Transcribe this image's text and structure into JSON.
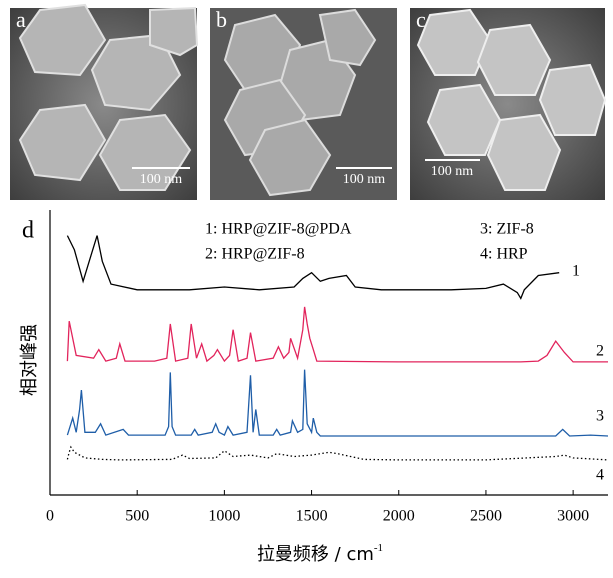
{
  "panels": [
    {
      "label": "a",
      "scale_bar": "100 nm"
    },
    {
      "label": "b",
      "scale_bar": "100 nm"
    },
    {
      "label": "c",
      "scale_bar": "100 nm"
    }
  ],
  "chart_data": {
    "type": "line",
    "panel_label": "d",
    "x_label": "拉曼频移 / cm",
    "x_label_sup": "-1",
    "y_label": "相对峰强",
    "xlim": [
      0,
      3200
    ],
    "xticks": [
      0,
      500,
      1000,
      1500,
      2000,
      2500,
      3000
    ],
    "ylim": [
      0,
      100
    ],
    "series": [
      {
        "name": "1: HRP@ZIF-8@PDA",
        "curve_label": "1",
        "color": "#000000",
        "style": "solid",
        "x": [
          100,
          140,
          190,
          240,
          270,
          300,
          350,
          500,
          800,
          1000,
          1200,
          1400,
          1450,
          1500,
          1550,
          1600,
          1700,
          1750,
          1900,
          2100,
          2300,
          2500,
          2600,
          2680,
          2700,
          2720,
          2800,
          2920
        ],
        "values": [
          91,
          86,
          75,
          85,
          91,
          82,
          74,
          72,
          72,
          73,
          72,
          73,
          76,
          78,
          75,
          76,
          77,
          73,
          72,
          72,
          72,
          72.5,
          74,
          71,
          69,
          72,
          77,
          78
        ]
      },
      {
        "name": "2: HRP@ZIF-8",
        "curve_label": "2",
        "color": "#e2245c",
        "style": "solid",
        "x": [
          100,
          110,
          150,
          250,
          280,
          320,
          380,
          400,
          430,
          600,
          670,
          690,
          720,
          790,
          810,
          840,
          870,
          900,
          940,
          960,
          1000,
          1030,
          1050,
          1080,
          1130,
          1150,
          1180,
          1280,
          1310,
          1340,
          1370,
          1380,
          1420,
          1450,
          1460,
          1475,
          1490,
          1510,
          1530,
          2000,
          2700,
          2800,
          2850,
          2900,
          2950,
          3000,
          3200
        ],
        "values": [
          47,
          61,
          49,
          48,
          51,
          47,
          48,
          53,
          47,
          47,
          48,
          60,
          47,
          48,
          60,
          48,
          53,
          47,
          49,
          51,
          47,
          49,
          58,
          47,
          48,
          57,
          47,
          48,
          52,
          48,
          50,
          55,
          48,
          58,
          66,
          60,
          55,
          51,
          47,
          46.7,
          46.7,
          47,
          49,
          54,
          50,
          46.7,
          46.7
        ]
      },
      {
        "name": "3: ZIF-8",
        "curve_label": "3",
        "color": "#1f5ea8",
        "style": "solid",
        "x": [
          100,
          130,
          150,
          170,
          180,
          200,
          260,
          290,
          320,
          420,
          450,
          660,
          680,
          690,
          700,
          720,
          810,
          830,
          850,
          930,
          950,
          970,
          1000,
          1020,
          1050,
          1130,
          1150,
          1165,
          1180,
          1200,
          1280,
          1300,
          1320,
          1380,
          1390,
          1420,
          1450,
          1460,
          1475,
          1500,
          1510,
          1530,
          1550,
          2000,
          2900,
          2940,
          2980,
          3100,
          3200
        ],
        "values": [
          21,
          27,
          22,
          30,
          36.8,
          22,
          22,
          25,
          21,
          23,
          21,
          21,
          24,
          43,
          24,
          21,
          21,
          23,
          21,
          22,
          25,
          22,
          21,
          24,
          21,
          22,
          42,
          22,
          30,
          21,
          21,
          23,
          21,
          22,
          26,
          22,
          23,
          44,
          25,
          22,
          27,
          22,
          20.7,
          20.7,
          20.7,
          23,
          20.7,
          21,
          20.7
        ]
      },
      {
        "name": "4: HRP",
        "curve_label": "4",
        "color": "#000000",
        "style": "dotted",
        "x": [
          100,
          110,
          120,
          140,
          200,
          300,
          400,
          700,
          760,
          800,
          950,
          1000,
          1050,
          1150,
          1250,
          1300,
          1400,
          1500,
          1600,
          1650,
          1800,
          2000,
          2500,
          2900,
          2950,
          3000,
          3200
        ],
        "values": [
          12.5,
          15,
          16.8,
          15,
          13,
          12.5,
          12.3,
          12.5,
          14,
          12.8,
          13,
          15.5,
          13.5,
          14,
          13,
          14.5,
          13.5,
          14,
          15,
          14.5,
          12.5,
          12.3,
          12.3,
          13.5,
          14,
          13,
          12.3
        ]
      }
    ]
  }
}
